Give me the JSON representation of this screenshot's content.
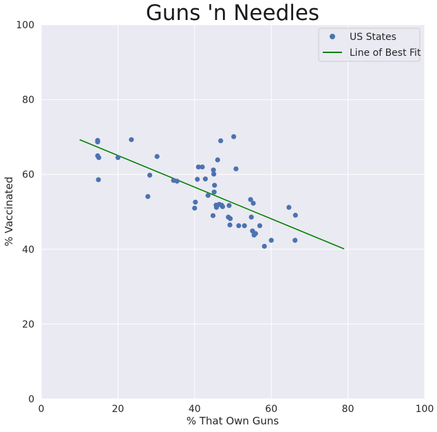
{
  "chart_data": {
    "type": "scatter",
    "title": "Guns 'n Needles",
    "xlabel": "% That Own Guns",
    "ylabel": "% Vaccinated",
    "xlim": [
      0,
      100
    ],
    "ylim": [
      0,
      100
    ],
    "xticks": [
      0,
      20,
      40,
      60,
      80,
      100
    ],
    "yticks": [
      0,
      20,
      40,
      60,
      80,
      100
    ],
    "grid": true,
    "legend_position": "top-right",
    "background_color": "#eaeaf2",
    "grid_color": "#ffffff",
    "series": [
      {
        "name": "US States",
        "kind": "scatter",
        "color": "#4c72b0",
        "x": [
          14.7,
          14.7,
          14.7,
          14.9,
          15.0,
          20.0,
          23.5,
          27.8,
          28.3,
          30.2,
          34.5,
          35.4,
          40.0,
          40.2,
          40.7,
          41.0,
          42.0,
          42.8,
          43.5,
          44.8,
          44.9,
          45.0,
          45.1,
          45.2,
          45.6,
          45.7,
          46.0,
          46.4,
          46.8,
          47.0,
          47.3,
          48.8,
          49.0,
          49.2,
          49.3,
          50.2,
          50.8,
          51.5,
          53.0,
          54.6,
          54.8,
          55.1,
          55.3,
          55.5,
          55.9,
          57.0,
          58.2,
          60.0,
          64.6,
          66.2,
          66.3
        ],
        "y": [
          69.1,
          68.7,
          65.0,
          58.6,
          64.5,
          64.5,
          69.3,
          54.1,
          59.8,
          64.8,
          58.4,
          58.2,
          51.0,
          52.6,
          58.7,
          62.0,
          62.0,
          58.8,
          54.4,
          49.0,
          61.2,
          60.1,
          55.3,
          57.1,
          51.8,
          51.2,
          63.9,
          52.0,
          69.0,
          51.8,
          51.4,
          48.6,
          51.7,
          46.5,
          48.2,
          70.1,
          61.5,
          46.3,
          46.3,
          53.3,
          48.6,
          44.9,
          52.3,
          43.8,
          44.2,
          46.3,
          40.8,
          42.4,
          51.2,
          42.4,
          49.1
        ]
      },
      {
        "name": "Line of Best Fit",
        "kind": "line",
        "color": "#008000",
        "x": [
          10,
          79
        ],
        "y": [
          69.3,
          40.1
        ]
      }
    ]
  }
}
